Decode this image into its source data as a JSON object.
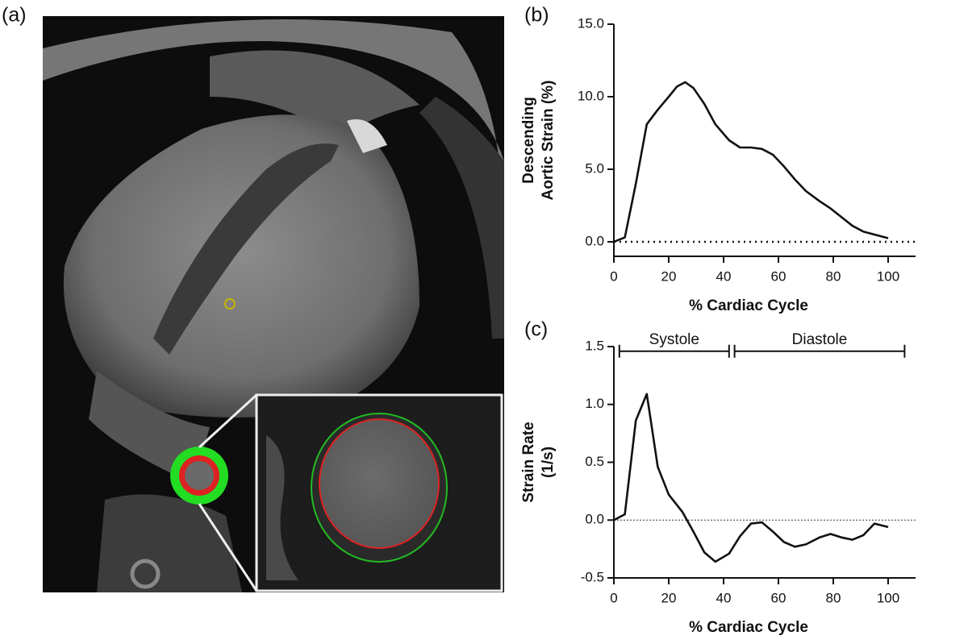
{
  "panel_labels": [
    "(a)",
    "(b)",
    "(c)"
  ],
  "chart_data": [
    {
      "type": "line",
      "xlabel": "% Cardiac Cycle",
      "ylabel": [
        "Descending",
        "Aortic Strain (%)"
      ],
      "color": "#111111",
      "x": [
        0,
        4,
        8,
        12,
        16,
        20,
        23,
        26,
        29,
        33,
        37,
        42,
        46,
        50,
        54,
        58,
        62,
        66,
        70,
        75,
        79,
        83,
        87,
        91,
        95,
        100
      ],
      "values": [
        0,
        0.3,
        4,
        8.1,
        9.1,
        10,
        10.7,
        11,
        10.6,
        9.5,
        8.1,
        7,
        6.5,
        6.5,
        6.4,
        6,
        5.2,
        4.3,
        3.5,
        2.8,
        2.3,
        1.7,
        1.1,
        0.7,
        0.5,
        0.25
      ],
      "xlim": [
        0,
        110
      ],
      "ylim": [
        -1,
        15
      ],
      "xticks": [
        0,
        20,
        40,
        60,
        80,
        100
      ],
      "yticks": [
        {
          "value": 0,
          "label": "0.0"
        },
        {
          "value": 5,
          "label": "5.0"
        },
        {
          "value": 10,
          "label": "10.0"
        },
        {
          "value": 15,
          "label": "15.0"
        }
      ],
      "zero_line": "dotted"
    },
    {
      "type": "line",
      "xlabel": "% Cardiac Cycle",
      "ylabel": [
        "Strain Rate",
        "(1/s)"
      ],
      "color": "#111111",
      "x": [
        0,
        4,
        8,
        12,
        16,
        20,
        25,
        29,
        33,
        37,
        42,
        46,
        50,
        54,
        58,
        62,
        66,
        70,
        75,
        79,
        83,
        87,
        91,
        95,
        100
      ],
      "values": [
        0,
        0.05,
        0.86,
        1.09,
        0.46,
        0.22,
        0.07,
        -0.1,
        -0.28,
        -0.36,
        -0.29,
        -0.14,
        -0.03,
        -0.02,
        -0.1,
        -0.19,
        -0.23,
        -0.21,
        -0.15,
        -0.12,
        -0.15,
        -0.17,
        -0.13,
        -0.03,
        -0.06
      ],
      "xlim": [
        0,
        110
      ],
      "ylim": [
        -0.5,
        1.5
      ],
      "xticks": [
        0,
        20,
        40,
        60,
        80,
        100
      ],
      "yticks": [
        -0.5,
        {
          "value": 0,
          "label": "0.0"
        },
        0.5,
        {
          "value": 1,
          "label": "1.0"
        },
        1.5
      ],
      "zero_line": "dotted",
      "annotations": [
        {
          "text": "Systole",
          "x": [
            2,
            42
          ],
          "y": 1.46
        },
        {
          "text": "Diastole",
          "x": [
            44,
            106
          ],
          "y": 1.46
        }
      ]
    }
  ]
}
